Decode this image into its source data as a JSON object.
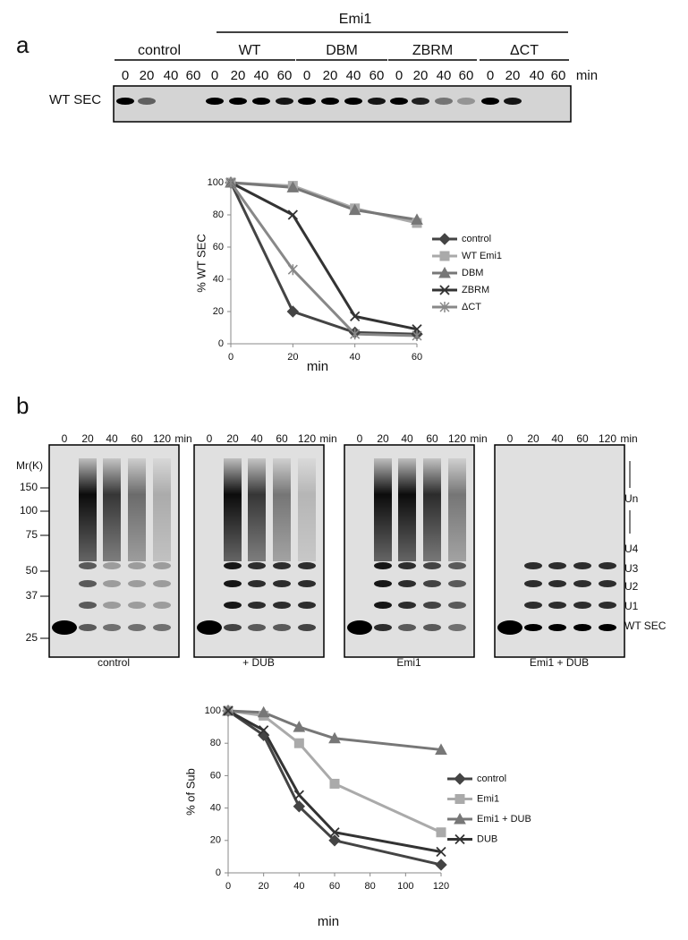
{
  "panel_a": {
    "label": "a",
    "group_title": "Emi1",
    "row_label": "WT SEC",
    "time_unit": "min",
    "groups": [
      {
        "name": "control",
        "times": [
          0,
          20,
          40,
          60
        ]
      },
      {
        "name": "WT",
        "times": [
          0,
          20,
          40,
          60
        ]
      },
      {
        "name": "DBM",
        "times": [
          0,
          20,
          40,
          60
        ]
      },
      {
        "name": "ZBRM",
        "times": [
          0,
          20,
          40,
          60
        ]
      },
      {
        "name": "ΔCT",
        "times": [
          0,
          20,
          40,
          60
        ]
      }
    ]
  },
  "panel_b": {
    "label": "b",
    "mw_label": "Mr(K)",
    "mw_markers": [
      150,
      100,
      75,
      50,
      37,
      25
    ],
    "species": [
      "Un",
      "U4",
      "U3",
      "U2",
      "U1",
      "WT SEC"
    ],
    "gels": [
      {
        "caption": "control",
        "times": [
          0,
          20,
          40,
          60,
          120
        ],
        "time_unit": "min"
      },
      {
        "caption": "+ DUB",
        "times": [
          0,
          20,
          40,
          60,
          120
        ],
        "time_unit": "min"
      },
      {
        "caption": "Emi1",
        "times": [
          0,
          20,
          40,
          60,
          120
        ],
        "time_unit": "min"
      },
      {
        "caption": "Emi1 + DUB",
        "times": [
          0,
          20,
          40,
          60,
          120
        ],
        "time_unit": "min"
      }
    ]
  },
  "chart_data": [
    {
      "type": "line",
      "xlabel": "min",
      "ylabel": "% WT SEC",
      "x": [
        0,
        20,
        40,
        60
      ],
      "xlim": [
        0,
        60
      ],
      "xticks": [
        0,
        20,
        40,
        60
      ],
      "ylim": [
        0,
        100
      ],
      "yticks": [
        0,
        20,
        40,
        60,
        80,
        100
      ],
      "grid": false,
      "legend": "right",
      "series": [
        {
          "name": "control",
          "color": "#444444",
          "marker": "diamond",
          "values": [
            100,
            20,
            7,
            6
          ]
        },
        {
          "name": "WT Emi1",
          "color": "#aaaaaa",
          "marker": "square",
          "values": [
            100,
            98,
            84,
            75
          ]
        },
        {
          "name": "DBM",
          "color": "#777777",
          "marker": "triangle",
          "values": [
            100,
            97,
            83,
            77
          ]
        },
        {
          "name": "ZBRM",
          "color": "#333333",
          "marker": "x",
          "values": [
            100,
            80,
            17,
            9
          ]
        },
        {
          "name": "ΔCT",
          "color": "#888888",
          "marker": "star",
          "values": [
            100,
            46,
            6,
            5
          ]
        }
      ]
    },
    {
      "type": "line",
      "xlabel": "min",
      "ylabel": "% of Sub",
      "x": [
        0,
        20,
        40,
        60,
        120
      ],
      "xlim": [
        0,
        120
      ],
      "xticks": [
        0,
        20,
        40,
        60,
        80,
        100,
        120
      ],
      "ylim": [
        0,
        100
      ],
      "yticks": [
        0,
        20,
        40,
        60,
        80,
        100
      ],
      "grid": false,
      "legend": "right",
      "series": [
        {
          "name": "control",
          "color": "#444444",
          "marker": "diamond",
          "values": [
            100,
            85,
            41,
            20,
            5
          ]
        },
        {
          "name": "Emi1",
          "color": "#aaaaaa",
          "marker": "square",
          "values": [
            100,
            97,
            80,
            55,
            25
          ]
        },
        {
          "name": "Emi1 + DUB",
          "color": "#777777",
          "marker": "triangle",
          "values": [
            100,
            99,
            90,
            83,
            76
          ]
        },
        {
          "name": "DUB",
          "color": "#333333",
          "marker": "x",
          "values": [
            100,
            88,
            48,
            25,
            13
          ]
        }
      ]
    }
  ]
}
